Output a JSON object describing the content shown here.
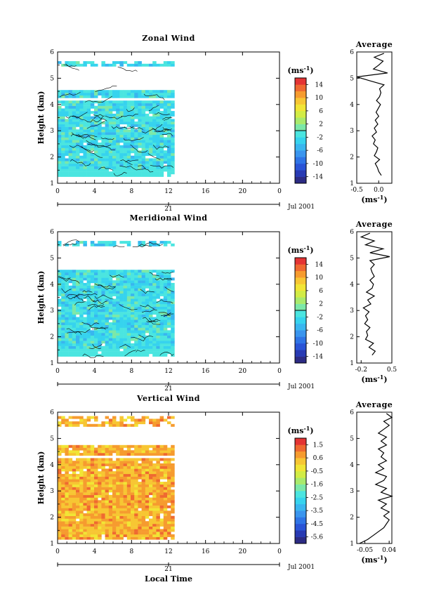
{
  "chart_data": [
    {
      "type": "heatmap",
      "title": "Zonal Wind",
      "ylabel": "Height (km)",
      "x_ticks": [
        "0",
        "4",
        "8",
        "12",
        "16",
        "20",
        "0"
      ],
      "y_ticks": [
        "1",
        "2",
        "3",
        "4",
        "5",
        "6"
      ],
      "xlim": [
        0,
        24
      ],
      "ylim": [
        1,
        6
      ],
      "data_extent_hours": [
        0,
        12.6
      ],
      "data_heights_km": [
        1.25,
        5.55
      ],
      "gap_heights_km": [
        [
          4.15,
          4.2
        ],
        [
          4.55,
          5.35
        ]
      ],
      "dominant_value_ms": -2,
      "contours": true,
      "date_marker": "21",
      "date_label": "Jul 2001",
      "colorbar": {
        "unit": "(ms",
        "unit_exp": "-1",
        "unit_close": ")",
        "labels": [
          "14",
          "10",
          "6",
          "2",
          "-2",
          "-6",
          "-10",
          "-14"
        ],
        "range": [
          -16,
          16
        ],
        "zero_line": true
      },
      "profile": {
        "title": "Average",
        "unit": "(ms",
        "unit_exp": "-1",
        "unit_close": ")",
        "x_ticks": [
          "-0.5",
          "0.0"
        ],
        "xlim": [
          -0.5,
          0.3
        ],
        "y_ticks": [
          "1",
          "2",
          "3",
          "4",
          "5",
          "6"
        ],
        "heights_km": [
          1.3,
          1.45,
          1.6,
          1.75,
          1.9,
          2.05,
          2.2,
          2.35,
          2.5,
          2.65,
          2.8,
          2.95,
          3.1,
          3.25,
          3.4,
          3.55,
          3.7,
          3.85,
          4.0,
          4.15,
          4.3,
          4.45,
          4.6,
          4.75,
          4.9,
          5.05,
          5.2,
          5.35,
          5.5,
          5.65,
          5.8,
          5.95
        ],
        "values_ms": [
          0.06,
          0.0,
          -0.03,
          -0.08,
          0.02,
          -0.1,
          -0.05,
          -0.02,
          -0.12,
          -0.08,
          -0.15,
          -0.05,
          -0.1,
          -0.02,
          -0.08,
          0.0,
          -0.06,
          -0.01,
          0.04,
          -0.05,
          0.02,
          0.05,
          0.02,
          0.12,
          -0.2,
          -0.55,
          0.2,
          -0.12,
          0.0,
          0.1,
          -0.1,
          0.12
        ]
      }
    },
    {
      "type": "heatmap",
      "title": "Meridional Wind",
      "ylabel": "Height (km)",
      "x_ticks": [
        "0",
        "4",
        "8",
        "12",
        "16",
        "20",
        "0"
      ],
      "y_ticks": [
        "1",
        "2",
        "3",
        "4",
        "5",
        "6"
      ],
      "xlim": [
        0,
        24
      ],
      "ylim": [
        1,
        6
      ],
      "data_extent_hours": [
        0,
        12.6
      ],
      "data_heights_km": [
        1.25,
        5.55
      ],
      "gap_heights_km": [
        [
          3.6,
          3.65
        ],
        [
          4.55,
          5.35
        ]
      ],
      "dominant_value_ms": -2,
      "contours": true,
      "date_marker": "21",
      "date_label": "Jul 2001",
      "colorbar": {
        "unit": "(ms",
        "unit_exp": "-1",
        "unit_close": ")",
        "labels": [
          "14",
          "10",
          "6",
          "2",
          "-2",
          "-6",
          "-10",
          "-14"
        ],
        "range": [
          -16,
          16
        ],
        "zero_line": true
      },
      "profile": {
        "title": "Average",
        "unit": "(ms",
        "unit_exp": "-1",
        "unit_close": ")",
        "x_ticks": [
          "-0.2",
          "0.5"
        ],
        "xlim": [
          -0.3,
          0.5
        ],
        "y_ticks": [
          "1",
          "2",
          "3",
          "4",
          "5",
          "6"
        ],
        "heights_km": [
          1.3,
          1.45,
          1.6,
          1.75,
          1.9,
          2.05,
          2.2,
          2.35,
          2.5,
          2.65,
          2.8,
          2.95,
          3.1,
          3.25,
          3.4,
          3.55,
          3.7,
          3.85,
          4.0,
          4.15,
          4.3,
          4.45,
          4.6,
          4.75,
          4.9,
          5.05,
          5.2,
          5.35,
          5.5,
          5.65,
          5.8,
          5.95
        ],
        "values_ms": [
          0.05,
          0.12,
          -0.02,
          0.08,
          -0.1,
          -0.05,
          -0.08,
          0.0,
          -0.12,
          -0.05,
          -0.1,
          -0.02,
          -0.15,
          0.02,
          -0.05,
          0.1,
          -0.08,
          0.05,
          0.08,
          0.0,
          0.1,
          0.05,
          0.02,
          0.1,
          0.0,
          0.45,
          0.0,
          0.3,
          -0.1,
          0.1,
          -0.2,
          0.0
        ]
      }
    },
    {
      "type": "heatmap",
      "title": "Vertical Wind",
      "ylabel": "Height (km)",
      "xlabel": "Local Time",
      "x_ticks": [
        "0",
        "4",
        "8",
        "12",
        "16",
        "20",
        "0"
      ],
      "y_ticks": [
        "1",
        "2",
        "3",
        "4",
        "5",
        "6"
      ],
      "xlim": [
        0,
        24
      ],
      "ylim": [
        1,
        6
      ],
      "data_extent_hours": [
        0,
        12.6
      ],
      "data_heights_km": [
        1.15,
        5.75
      ],
      "gap_heights_km": [
        [
          4.2,
          4.35
        ],
        [
          4.75,
          5.4
        ]
      ],
      "dominant_value_ms": 0.5,
      "contours": false,
      "date_marker": "21",
      "date_label": "Jul 2001",
      "colorbar": {
        "unit": "(ms",
        "unit_exp": "-1",
        "unit_close": ")",
        "labels": [
          "1.5",
          "0.6",
          "-0.5",
          "-1.6",
          "-2.5",
          "-3.5",
          "-4.5",
          "-5.6"
        ],
        "range": [
          -6.0,
          2.0
        ],
        "zero_line": false
      },
      "profile": {
        "title": "Average",
        "unit": "(ms",
        "unit_exp": "-1",
        "unit_close": ")",
        "x_ticks": [
          "-0.05",
          "0.04"
        ],
        "xlim": [
          -0.08,
          0.05
        ],
        "y_ticks": [
          "1",
          "2",
          "3",
          "4",
          "5",
          "6"
        ],
        "heights_km": [
          1.0,
          1.15,
          1.3,
          1.45,
          1.6,
          1.75,
          1.9,
          2.05,
          2.2,
          2.35,
          2.5,
          2.65,
          2.8,
          2.95,
          3.1,
          3.25,
          3.4,
          3.55,
          3.7,
          3.85,
          4.0,
          4.15,
          4.3,
          4.45,
          4.6,
          4.75,
          4.9,
          5.05,
          5.2,
          5.35,
          5.5,
          5.65,
          5.8,
          5.95
        ],
        "values_ms": [
          -0.07,
          -0.04,
          -0.02,
          0.0,
          0.02,
          0.03,
          0.04,
          0.02,
          0.04,
          0.01,
          0.03,
          0.0,
          0.05,
          0.01,
          0.03,
          -0.01,
          0.02,
          0.03,
          -0.01,
          0.02,
          0.0,
          0.03,
          0.01,
          0.02,
          0.0,
          0.03,
          0.01,
          0.03,
          0.0,
          0.02,
          0.04,
          0.02,
          0.05,
          0.03
        ]
      }
    }
  ]
}
